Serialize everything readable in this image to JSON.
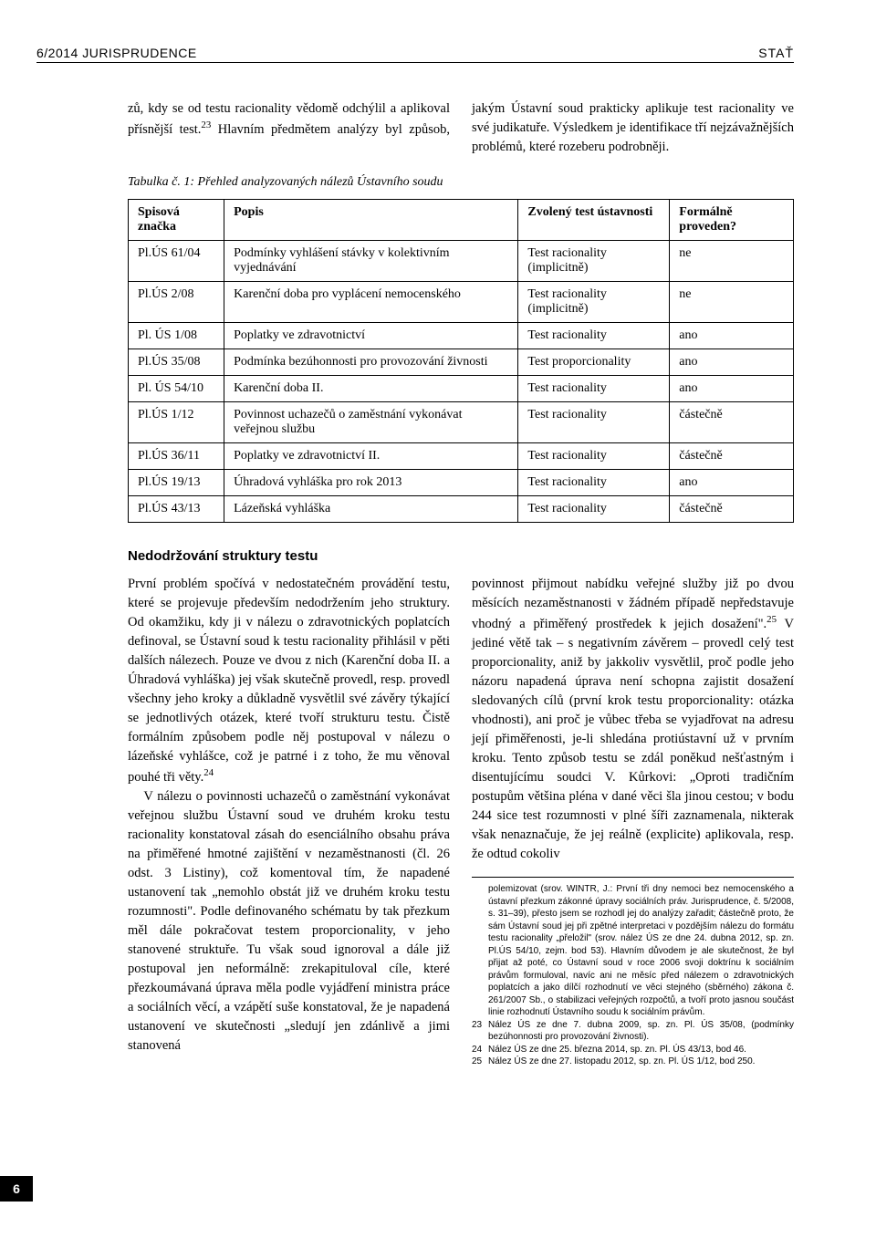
{
  "header": {
    "left": "6/2014 JURISPRUDENCE",
    "right": "STAŤ"
  },
  "intro": {
    "p1": "zů, kdy se od testu racionality vědomě odchýlil a aplikoval přísnější test.",
    "sup1": "23",
    "p1b": " Hlavním předmětem analýzy byl způsob, jakým Ústavní soud prak",
    "p2a": "ticky aplikuje test racionality ve své judikatuře. Výsledkem je identifikace tří nejzávažnějších problémů, které rozeberu podrobněji."
  },
  "table": {
    "caption": "Tabulka č. 1: Přehled analyzovaných nálezů Ústavního soudu",
    "headers": [
      "Spisová značka",
      "Popis",
      "Zvolený test ústavnosti",
      "Formálně proveden?"
    ],
    "rows": [
      [
        "Pl.ÚS 61/04",
        "Podmínky vyhlášení stávky v kolektivním vyjednávání",
        "Test racionality (implicitně)",
        "ne"
      ],
      [
        "Pl.ÚS 2/08",
        "Karenční doba pro vyplácení nemocenského",
        "Test racionality (implicitně)",
        "ne"
      ],
      [
        "Pl. ÚS 1/08",
        "Poplatky ve zdravotnictví",
        "Test racionality",
        "ano"
      ],
      [
        "Pl.ÚS 35/08",
        "Podmínka bezúhonnosti pro provozování živnosti",
        "Test proporcionality",
        "ano"
      ],
      [
        "Pl. ÚS 54/10",
        "Karenční doba II.",
        "Test racionality",
        "ano"
      ],
      [
        "Pl.ÚS 1/12",
        "Povinnost uchazečů o zaměstnání vykonávat veřejnou službu",
        "Test racionality",
        "částečně"
      ],
      [
        "Pl.ÚS 36/11",
        "Poplatky ve zdravotnictví II.",
        "Test racionality",
        "částečně"
      ],
      [
        "Pl.ÚS 19/13",
        "Úhradová vyhláška pro rok 2013",
        "Test racionality",
        "ano"
      ],
      [
        "Pl.ÚS 43/13",
        "Lázeňská vyhláška",
        "Test racionality",
        "částečně"
      ]
    ]
  },
  "section": {
    "title": "Nedodržování struktury testu"
  },
  "body": {
    "p1a": "První problém spočívá v nedostatečném provádění testu, které se projevuje především nedodržením jeho struktury. Od okamžiku, kdy ji v nálezu o zdravotnických poplatcích definoval, se Ústavní soud k testu racionality přihlásil v pěti dalších nálezech. Pouze ve dvou z nich (Karenční doba II. a Úhradová vyhláška) jej však skutečně provedl, resp. provedl všechny jeho kroky a důkladně vysvětlil své závěry týkající se jednotlivých otázek, které tvoří strukturu testu. Čistě formálním způsobem podle něj postupoval v nálezu o lázeňské vyhlášce, což je patrné i z toho, že mu věnoval pouhé tři věty.",
    "sup1": "24",
    "p2": "V nálezu o povinnosti uchazečů o zaměstnání vykonávat veřejnou službu Ústavní soud ve druhém kroku testu racionality konstatoval zásah do esenciálního obsahu práva na přiměřené hmotné zajištění v nezaměstnanosti (čl. 26 odst. 3 Listiny), což komentoval tím, že napadené ustanovení tak „nemohlo obstát již ve druhém kroku testu rozumnosti\". Podle definovaného schématu by tak přezkum měl dále pokračovat testem proporcionality, v jeho stanovené struktuře. Tu však soud ignoroval a dále již postupoval jen neformálně: zrekapituloval cíle, které přezkoumávaná úprava měla podle vyjádření ministra práce a sociálních věcí, a vzápětí suše konstatoval, že je napadená ustanovení ve skutečnosti „sledují jen zdánlivě a jimi stanovená",
    "p3a": "povinnost přijmout nabídku veřejné služby již po dvou měsících nezaměstnanosti v žádném případě nepředstavuje vhodný a přiměřený prostředek k jejich dosažení\".",
    "sup2": "25",
    "p3b": " V jediné větě tak – s negativním závěrem – provedl celý test proporcionality, aniž by jakkoliv vysvětlil, proč podle jeho názoru napadená úprava není schopna zajistit dosažení sledovaných cílů (první krok testu proporcionality: otázka vhodnosti), ani proč je vůbec třeba se vyjadřovat na adresu její přiměřenosti, je-li shledána protiústavní už v prvním kroku. Tento způsob testu se zdál poněkud nešťastným i disentujícímu soudci V. Kůrkovi: „Oproti tradičním postupům většina pléna v dané věci šla jinou cestou; v bodu 244 sice test rozumnosti v plné šíři zaznamenala, nikterak však nenaznačuje, že jej reálně (explicite) aplikovala, resp. že odtud cokoliv"
  },
  "footnotes": {
    "cont": "polemizovat (srov. WINTR, J.: První tři dny nemoci bez nemocenského a ústavní přezkum zákonné úpravy sociálních práv. Jurisprudence, č. 5/2008, s. 31–39), přesto jsem se rozhodl jej do analýzy zařadit; částečně proto, že sám Ústavní soud jej při zpětné interpretaci v pozdějším nálezu do formátu testu racionality „přeložil\" (srov. nález ÚS ze dne 24. dubna 2012, sp. zn. Pl.ÚS 54/10, zejm. bod 53). Hlavním důvodem je ale skutečnost, že byl přijat až poté, co Ústavní soud v roce 2006 svoji doktrínu k sociálním právům formuloval, navíc ani ne měsíc před nálezem o zdravotnických poplatcích a jako dílčí rozhodnutí ve věci stejného (sběrného) zákona č. 261/2007 Sb., o stabilizaci veřejných rozpočtů, a tvoří proto jasnou součást linie rozhodnutí Ústavního soudu k sociálním právům.",
    "f23": "Nález ÚS ze dne 7. dubna 2009, sp. zn. Pl. ÚS 35/08, (podmínky bezúhonnosti pro provozování živnosti).",
    "f24": "Nález ÚS ze dne 25. března 2014, sp. zn. Pl. ÚS 43/13, bod 46.",
    "f25": "Nález ÚS ze dne 27. listopadu 2012, sp. zn. Pl. ÚS 1/12, bod 250."
  },
  "pageNumber": "6"
}
